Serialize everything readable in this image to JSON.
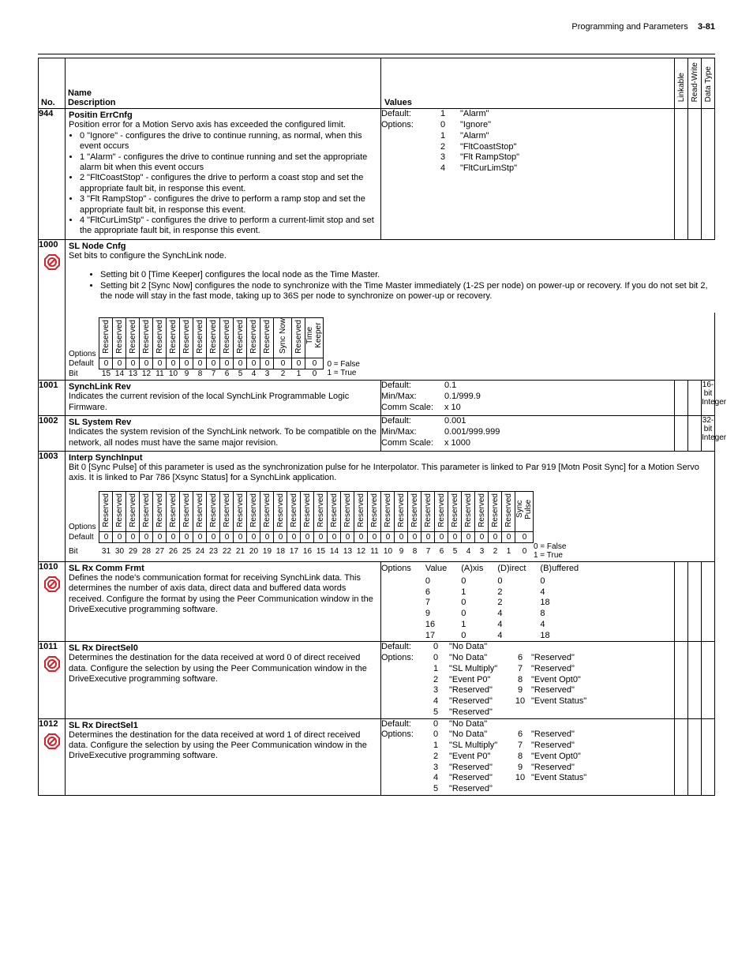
{
  "page_header": {
    "title": "Programming and Parameters",
    "page_no": "3-81"
  },
  "head": {
    "no": "No.",
    "name": "Name",
    "desc": "Description",
    "values": "Values",
    "linkable": "Linkable",
    "readwrite": "Read-Write",
    "datatype": "Data Type"
  },
  "legend": {
    "false": "0 = False",
    "true": "1 = True"
  },
  "stop_icon_color": "#d2232a",
  "rows": {
    "r944": {
      "no": "944",
      "name": "Positin ErrCnfg",
      "desc_lead": "Position error for a Motion Servo axis has exceeded the configured limit.",
      "bullets": [
        "0 \"Ignore\" - configures the drive to continue running, as normal, when this event occurs",
        "1 \"Alarm\" - configures the drive to continue running and set the appropriate alarm bit when this event occurs",
        "2 \"FltCoastStop\" - configures the drive to perform a coast stop and set the appropriate fault bit, in response this event.",
        "3 \"Flt RampStop\" - configures the drive to perform a ramp stop and set the appropriate fault bit, in response this event.",
        "4 \"FltCurLimStp\" - configures the drive to perform a current-limit stop and set the appropriate fault bit, in response this event."
      ],
      "values": {
        "default_label": "Default:",
        "default_val": "1",
        "default_txt": "\"Alarm\"",
        "options_label": "Options:",
        "options": [
          {
            "n": "0",
            "t": "\"Ignore\""
          },
          {
            "n": "1",
            "t": "\"Alarm\""
          },
          {
            "n": "2",
            "t": "\"FltCoastStop\""
          },
          {
            "n": "3",
            "t": "\"Flt RampStop\""
          },
          {
            "n": "4",
            "t": "\"FltCurLimStp\""
          }
        ]
      }
    },
    "r1000": {
      "no": "1000",
      "name": "SL Node Cnfg",
      "desc_lead": "Set bits to configure the SynchLink node.",
      "bullets": [
        "Setting bit 0 [Time Keeper] configures the local node as the Time Master.",
        "Setting bit 2 [Sync Now] configures the node to synchronize with the Time Master immediately (1-2S per node) on power-up or recovery. If you do not set bit 2, the node will stay in the fast mode, taking up to 36S per node to synchronize on power-up or recovery."
      ],
      "bit_table": {
        "options_label": "Options",
        "default_label": "Default",
        "bit_label": "Bit",
        "headers": [
          "Reserved",
          "Reserved",
          "Reserved",
          "Reserved",
          "Reserved",
          "Reserved",
          "Reserved",
          "Reserved",
          "Reserved",
          "Reserved",
          "Reserved",
          "Reserved",
          "Reserved",
          "Sync Now",
          "Reserved",
          "Time Keeper"
        ],
        "defaults": [
          "0",
          "0",
          "0",
          "0",
          "0",
          "0",
          "0",
          "0",
          "0",
          "0",
          "0",
          "0",
          "0",
          "0",
          "0",
          "0"
        ],
        "bits": [
          "15",
          "14",
          "13",
          "12",
          "11",
          "10",
          "9",
          "8",
          "7",
          "6",
          "5",
          "4",
          "3",
          "2",
          "1",
          "0"
        ]
      }
    },
    "r1001": {
      "no": "1001",
      "name": "SynchLink Rev",
      "desc": "Indicates the current revision of the local SynchLink Programmable Logic Firmware.",
      "values": {
        "default_label": "Default:",
        "default_val": "0.1",
        "minmax_label": "Min/Max:",
        "minmax_val": "0.1/999.9",
        "comm_label": "Comm Scale:",
        "comm_val": "x 10"
      },
      "datatype": "16-bit Integer"
    },
    "r1002": {
      "no": "1002",
      "name": "SL System Rev",
      "desc": "Indicates the system revision of the SynchLink network. To be compatible on the network, all nodes must have the same major revision.",
      "values": {
        "default_label": "Default:",
        "default_val": "0.001",
        "minmax_label": "Min/Max:",
        "minmax_val": "0.001/999.999",
        "comm_label": "Comm Scale:",
        "comm_val": "x 1000"
      },
      "datatype": "32-bit Integer"
    },
    "r1003": {
      "no": "1003",
      "name": "Interp SynchInput",
      "desc": "Bit 0 [Sync Pulse] of this parameter is used as the synchronization pulse for he Interpolator. This parameter is linked to Par 919 [Motn Posit Sync] for a Motion Servo axis. It is linked to Par 786 [Xsync Status] for a SynchLink application.",
      "bit_table": {
        "options_label": "Options",
        "default_label": "Default",
        "bit_label": "Bit",
        "headers": [
          "Reserved",
          "Reserved",
          "Reserved",
          "Reserved",
          "Reserved",
          "Reserved",
          "Reserved",
          "Reserved",
          "Reserved",
          "Reserved",
          "Reserved",
          "Reserved",
          "Reserved",
          "Reserved",
          "Reserved",
          "Reserved",
          "Reserved",
          "Reserved",
          "Reserved",
          "Reserved",
          "Reserved",
          "Reserved",
          "Reserved",
          "Reserved",
          "Reserved",
          "Reserved",
          "Reserved",
          "Reserved",
          "Reserved",
          "Reserved",
          "Reserved",
          "Sync Pulse"
        ],
        "defaults": [
          "0",
          "0",
          "0",
          "0",
          "0",
          "0",
          "0",
          "0",
          "0",
          "0",
          "0",
          "0",
          "0",
          "0",
          "0",
          "0",
          "0",
          "0",
          "0",
          "0",
          "0",
          "0",
          "0",
          "0",
          "0",
          "0",
          "0",
          "0",
          "0",
          "0",
          "0",
          "0"
        ],
        "bits": [
          "31",
          "30",
          "29",
          "28",
          "27",
          "26",
          "25",
          "24",
          "23",
          "22",
          "21",
          "20",
          "19",
          "18",
          "17",
          "16",
          "15",
          "14",
          "13",
          "12",
          "11",
          "10",
          "9",
          "8",
          "7",
          "6",
          "5",
          "4",
          "3",
          "2",
          "1",
          "0"
        ]
      }
    },
    "r1010": {
      "no": "1010",
      "name": "SL Rx Comm Frmt",
      "desc": "Defines the node's communication format for receiving SynchLink data. This determines the number of axis data, direct data and buffered data words received. Configure the format by using the Peer Communication window in the DriveExecutive programming software.",
      "values": {
        "options_label": "Options",
        "col_value": "Value",
        "col_axis": "(A)xis",
        "col_direct": "(D)irect",
        "col_buffered": "(B)uffered",
        "rows": [
          {
            "v": "0",
            "a": "0",
            "d": "0",
            "b": "0"
          },
          {
            "v": "6",
            "a": "1",
            "d": "2",
            "b": "4"
          },
          {
            "v": "7",
            "a": "0",
            "d": "2",
            "b": "18"
          },
          {
            "v": "9",
            "a": "0",
            "d": "4",
            "b": "8"
          },
          {
            "v": "16",
            "a": "1",
            "d": "4",
            "b": "4"
          },
          {
            "v": "17",
            "a": "0",
            "d": "4",
            "b": "18"
          }
        ]
      }
    },
    "r1011": {
      "no": "1011",
      "name": "SL Rx DirectSel0",
      "desc": "Determines the destination for the data received at word 0 of direct received data. Configure the selection by using the Peer Communication window in the DriveExecutive programming software.",
      "values": {
        "default_label": "Default:",
        "default_val": "0",
        "default_txt": "\"No Data\"",
        "options_label": "Options:",
        "left": [
          {
            "n": "0",
            "t": "\"No Data\""
          },
          {
            "n": "1",
            "t": "\"SL Multiply\""
          },
          {
            "n": "2",
            "t": "\"Event P0\""
          },
          {
            "n": "3",
            "t": "\"Reserved\""
          },
          {
            "n": "4",
            "t": "\"Reserved\""
          },
          {
            "n": "5",
            "t": "\"Reserved\""
          }
        ],
        "right": [
          {
            "n": "6",
            "t": "\"Reserved\""
          },
          {
            "n": "7",
            "t": "\"Reserved\""
          },
          {
            "n": "8",
            "t": "\"Event Opt0\""
          },
          {
            "n": "9",
            "t": "\"Reserved\""
          },
          {
            "n": "10",
            "t": "\"Event Status\""
          }
        ]
      }
    },
    "r1012": {
      "no": "1012",
      "name": "SL Rx DirectSel1",
      "desc": "Determines the destination for the data received at word 1 of direct received data. Configure the selection by using the Peer Communication window in the DriveExecutive programming software.",
      "values": {
        "default_label": "Default:",
        "default_val": "0",
        "default_txt": "\"No Data\"",
        "options_label": "Options:",
        "left": [
          {
            "n": "0",
            "t": "\"No Data\""
          },
          {
            "n": "1",
            "t": "\"SL Multiply\""
          },
          {
            "n": "2",
            "t": "\"Event P0\""
          },
          {
            "n": "3",
            "t": "\"Reserved\""
          },
          {
            "n": "4",
            "t": "\"Reserved\""
          },
          {
            "n": "5",
            "t": "\"Reserved\""
          }
        ],
        "right": [
          {
            "n": "6",
            "t": "\"Reserved\""
          },
          {
            "n": "7",
            "t": "\"Reserved\""
          },
          {
            "n": "8",
            "t": "\"Event Opt0\""
          },
          {
            "n": "9",
            "t": "\"Reserved\""
          },
          {
            "n": "10",
            "t": "\"Event Status\""
          }
        ]
      }
    }
  }
}
